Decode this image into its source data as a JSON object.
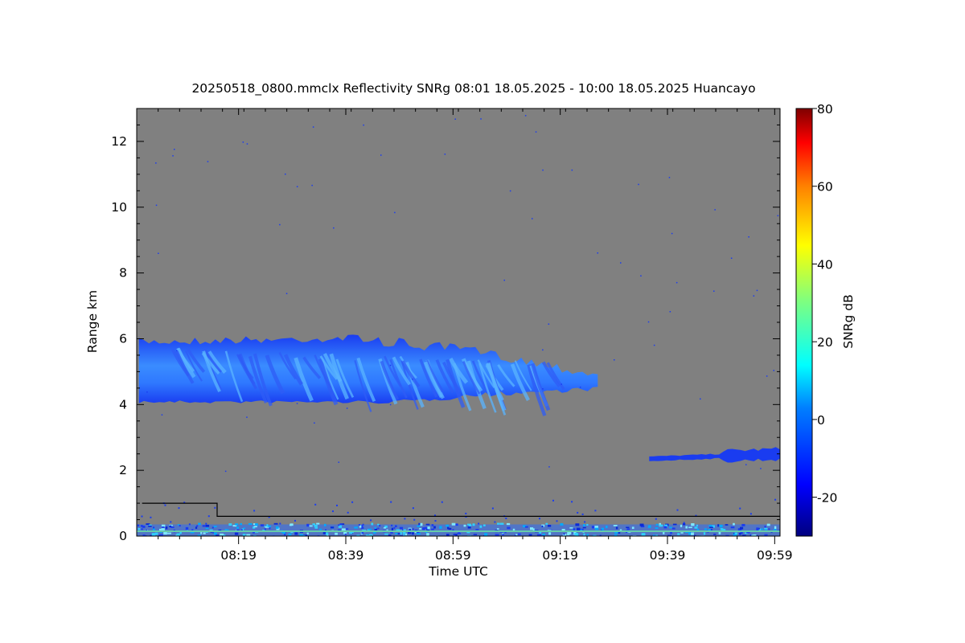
{
  "title": "20250518_0800.mmclx Reflectivity SNRg   08:01 18.05.2025 - 10:00 18.05.2025 Huancayo",
  "colors": {
    "background": "#808080",
    "echo_base": "#1a3cf0",
    "echo_bright": "#3aa0ff",
    "noise_band": "#2a6cff",
    "surface_line": "#66ccaa",
    "threshold_line": "#000000"
  },
  "chart_data": {
    "type": "heatmap",
    "title": "20250518_0800.mmclx Reflectivity SNRg   08:01 18.05.2025 - 10:00 18.05.2025 Huancayo",
    "xlabel": "Time UTC",
    "ylabel": "Range km",
    "xlim": [
      "08:01",
      "10:00"
    ],
    "ylim": [
      0,
      13
    ],
    "x_ticks": [
      "08:19",
      "08:39",
      "08:59",
      "09:19",
      "09:39",
      "09:59"
    ],
    "y_ticks": [
      0,
      2,
      4,
      6,
      8,
      10,
      12
    ],
    "colorbar": {
      "label": "SNRg dB",
      "range": [
        -30,
        80
      ],
      "ticks": [
        -20,
        0,
        20,
        40,
        60,
        80
      ],
      "colormap": "jet"
    },
    "features": [
      {
        "layer": "mid-level cloud",
        "time_start": "08:01",
        "time_end": "09:26",
        "base_km": 4.0,
        "top_km": 6.2,
        "snr_db": [
          -22,
          5
        ]
      },
      {
        "layer": "low cloud",
        "time_start": "09:35",
        "time_end": "10:00",
        "base_km": 2.0,
        "top_km": 2.7,
        "snr_db": [
          -22,
          -10
        ]
      },
      {
        "layer": "near-surface clutter",
        "time_start": "08:01",
        "time_end": "10:00",
        "base_km": 0.0,
        "top_km": 0.6,
        "snr_db": [
          -25,
          10
        ]
      }
    ],
    "threshold_line": [
      {
        "time": "08:01",
        "range_km": 1.0
      },
      {
        "time": "08:15",
        "range_km": 1.0
      },
      {
        "time": "08:15",
        "range_km": 0.6
      },
      {
        "time": "10:00",
        "range_km": 0.6
      }
    ]
  }
}
